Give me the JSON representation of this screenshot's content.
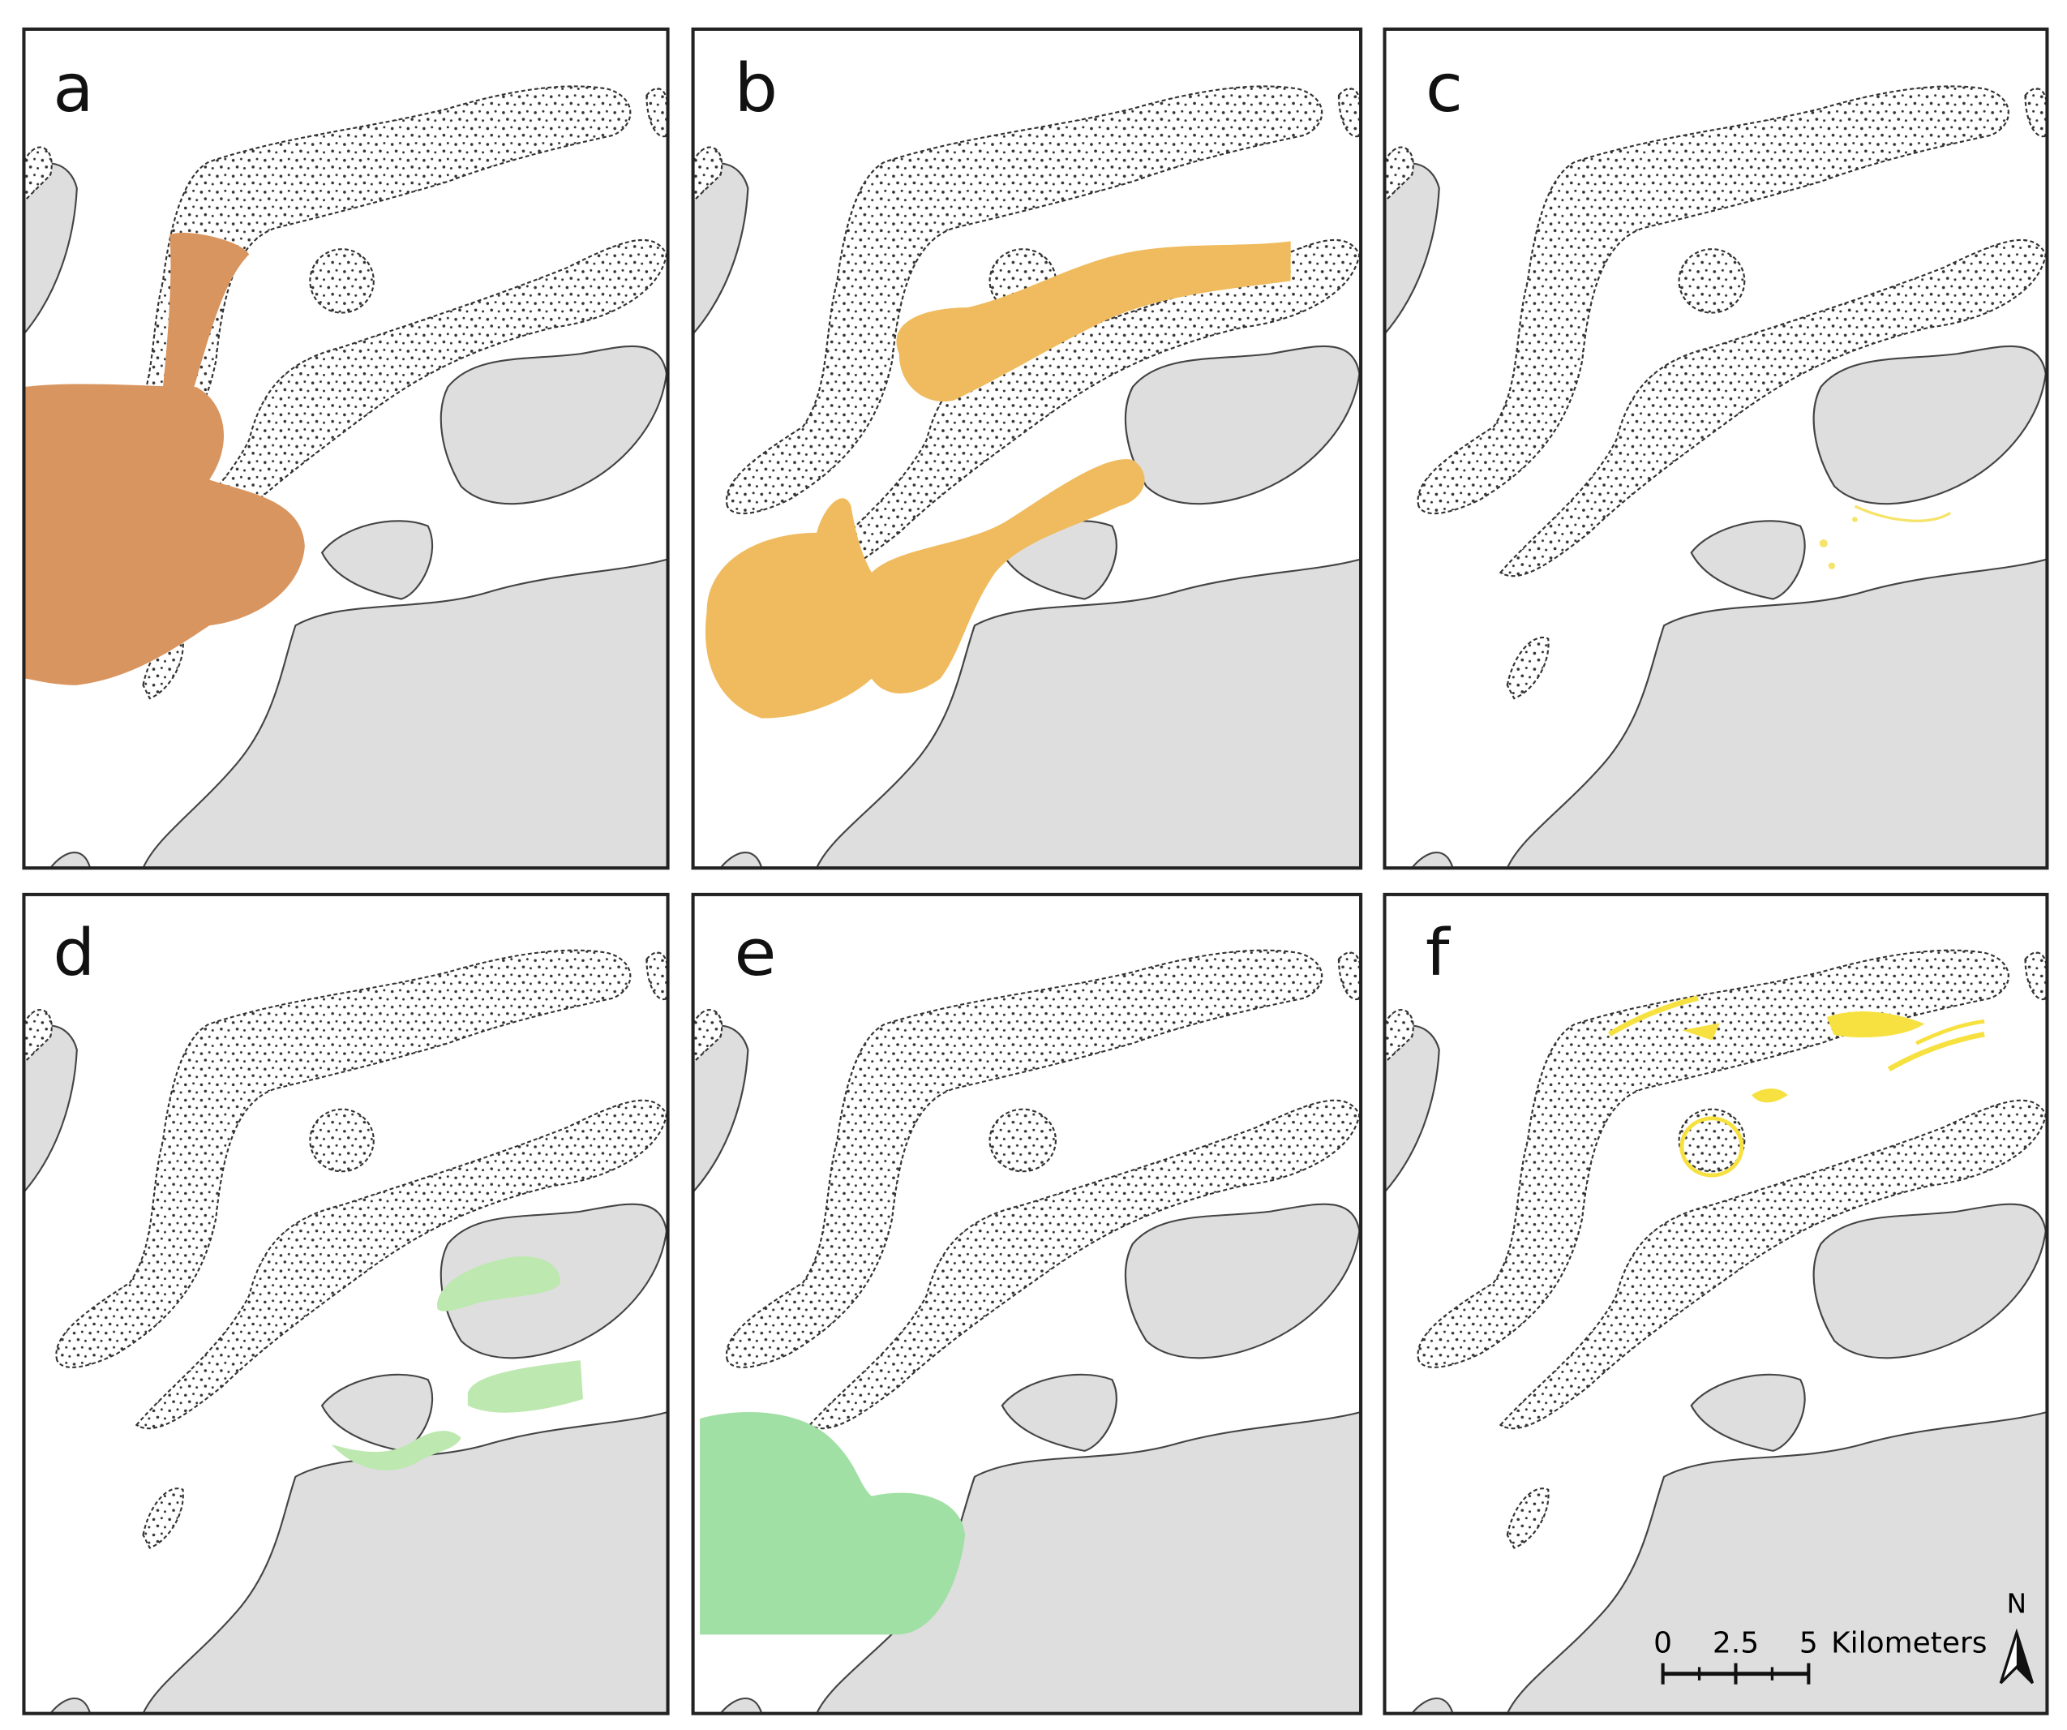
{
  "panels": [
    {
      "label": "a"
    },
    {
      "label": "b"
    },
    {
      "label": "c"
    },
    {
      "label": "d"
    },
    {
      "label": "e"
    },
    {
      "label": "f"
    }
  ],
  "scale_bar": {
    "ticks": [
      0,
      2.5,
      5
    ],
    "unit": "Kilometers"
  },
  "north_label": "N"
}
